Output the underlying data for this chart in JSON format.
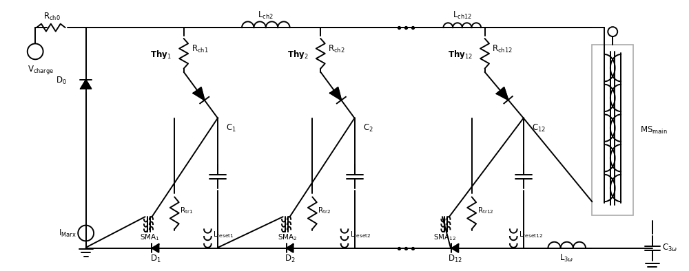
{
  "fig_width": 10.0,
  "fig_height": 3.94,
  "bg_color": "#ffffff",
  "line_color": "#000000",
  "line_width": 1.4,
  "font_size": 8.5
}
